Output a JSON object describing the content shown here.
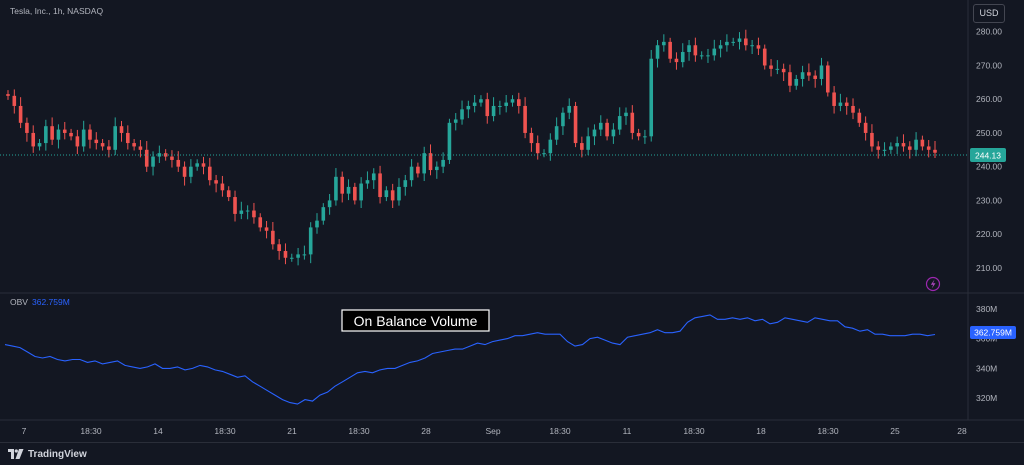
{
  "header": {
    "symbol_title": "Tesla, Inc., 1h, NASDAQ",
    "currency": "USD"
  },
  "price_label": "244.13",
  "indicator": {
    "name": "OBV",
    "value": "362.759M",
    "value_badge": "362.759M",
    "annotation": "On Balance Volume"
  },
  "footer": {
    "brand": "TradingView"
  },
  "colors": {
    "background": "#131722",
    "up": "#26a69a",
    "down": "#ef5350",
    "obv_line": "#2962ff",
    "text": "#b2b5be"
  },
  "chart_data": [
    {
      "type": "candlestick",
      "title": "Tesla, Inc., 1h, NASDAQ",
      "x_tick_labels": [
        "7",
        "18:30",
        "14",
        "18:30",
        "21",
        "18:30",
        "28",
        "Sep",
        "18:30",
        "11",
        "18:30",
        "18",
        "18:30",
        "25",
        "28"
      ],
      "y_tick_labels": [
        "280.00",
        "270.00",
        "260.00",
        "250.00",
        "240.00",
        "230.00",
        "220.00",
        "210.00"
      ],
      "ylim": [
        207,
        282
      ],
      "last_price": 244.13,
      "grid": false,
      "closes": [
        261,
        258,
        253,
        250,
        246,
        247,
        252,
        248,
        251,
        250,
        249,
        246,
        251,
        248,
        247,
        246,
        245,
        252,
        250,
        247,
        246,
        245,
        240,
        243,
        244,
        243,
        242,
        240,
        237,
        240,
        241,
        240,
        236,
        235,
        233,
        231,
        226,
        227,
        227,
        225,
        222,
        221,
        217,
        215,
        213,
        213,
        214,
        214,
        222,
        224,
        228,
        230,
        237,
        232,
        234,
        230,
        235,
        236,
        238,
        231,
        233,
        230,
        234,
        236,
        240,
        238,
        244,
        239,
        240,
        242,
        253,
        254,
        257,
        258,
        259,
        260,
        255,
        258,
        258,
        259,
        260,
        258,
        250,
        247,
        244,
        244,
        248,
        252,
        256,
        258,
        247,
        245,
        249,
        251,
        253,
        249,
        251,
        255,
        256,
        250,
        249,
        249,
        272,
        276,
        277,
        272,
        271,
        274,
        276,
        273,
        273,
        273,
        275,
        276,
        277,
        277,
        278,
        276,
        276,
        275,
        270,
        269,
        269,
        268,
        264,
        266,
        268,
        267,
        266,
        270,
        262,
        258,
        259,
        258,
        256,
        253,
        250,
        246,
        245,
        245,
        246,
        247,
        246,
        245,
        248,
        246,
        245,
        244.13
      ]
    },
    {
      "type": "line",
      "name": "OBV",
      "y_tick_labels": [
        "380M",
        "360M",
        "340M",
        "320M"
      ],
      "ylim": [
        312,
        386
      ],
      "last_value": 362.759,
      "values": [
        356,
        355,
        354,
        351,
        348,
        347,
        348,
        346,
        345,
        346,
        346,
        344,
        345,
        343,
        344,
        345,
        342,
        341,
        340,
        341,
        343,
        340,
        340,
        341,
        339,
        340,
        342,
        341,
        339,
        338,
        336,
        334,
        335,
        331,
        328,
        325,
        322,
        319,
        317,
        316,
        319,
        318,
        322,
        324,
        328,
        331,
        334,
        337,
        338,
        337,
        339,
        340,
        340,
        342,
        344,
        345,
        347,
        350,
        351,
        352,
        353,
        353,
        355,
        357,
        356,
        358,
        359,
        360,
        362,
        362,
        363,
        364,
        363,
        363,
        363,
        358,
        355,
        356,
        360,
        361,
        359,
        357,
        356,
        361,
        362,
        363,
        364,
        366,
        364,
        364,
        365,
        371,
        374,
        375,
        376,
        373,
        373,
        374,
        373,
        374,
        372,
        373,
        370,
        371,
        374,
        373,
        372,
        371,
        374,
        373,
        372,
        372,
        368,
        367,
        365,
        366,
        363,
        363,
        362,
        362,
        362,
        363,
        363,
        362,
        362.759
      ]
    }
  ]
}
